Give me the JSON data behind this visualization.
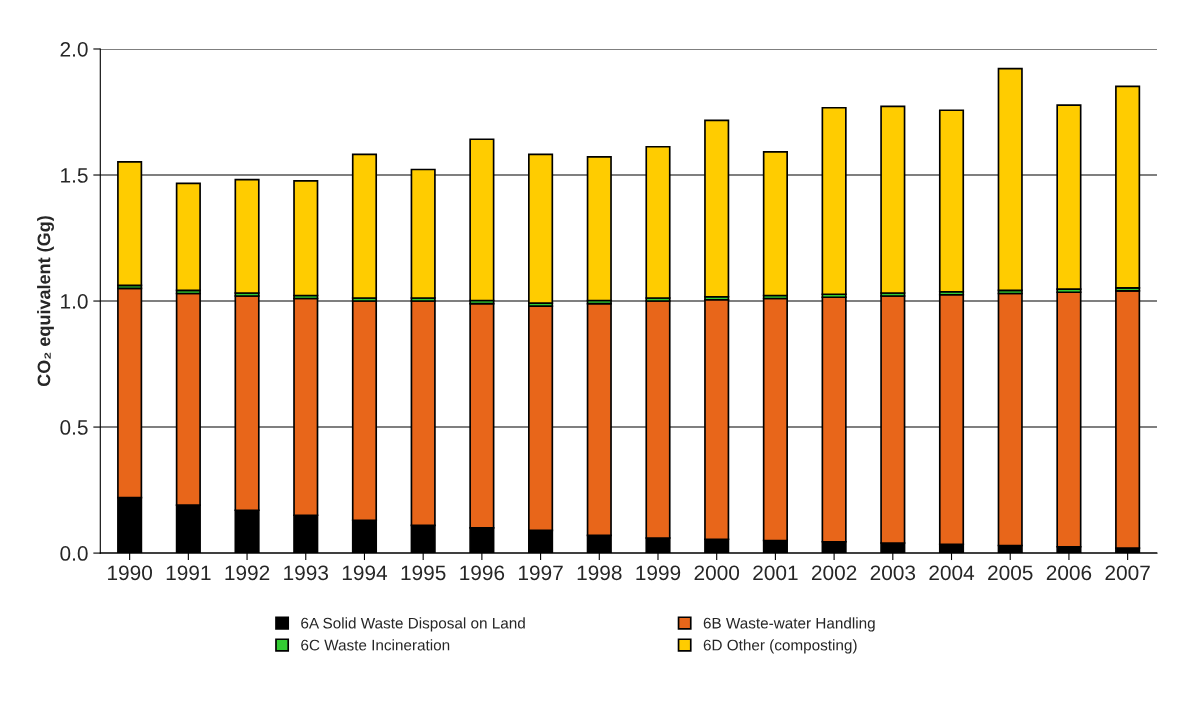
{
  "chart_data": {
    "type": "bar",
    "stacked": true,
    "ylabel": "CO₂ equivalent (Gg)",
    "categories": [
      "1990",
      "1991",
      "1992",
      "1993",
      "1994",
      "1995",
      "1996",
      "1997",
      "1998",
      "1999",
      "2000",
      "2001",
      "2002",
      "2003",
      "2004",
      "2005",
      "2006",
      "2007"
    ],
    "series": [
      {
        "name": "6A Solid Waste Disposal on Land",
        "color": "#000000",
        "values": [
          0.22,
          0.19,
          0.17,
          0.15,
          0.13,
          0.11,
          0.1,
          0.09,
          0.07,
          0.06,
          0.055,
          0.05,
          0.045,
          0.04,
          0.035,
          0.03,
          0.025,
          0.02
        ]
      },
      {
        "name": "6B Waste-water Handling",
        "color": "#e8661a",
        "values": [
          0.83,
          0.84,
          0.85,
          0.86,
          0.87,
          0.89,
          0.89,
          0.89,
          0.92,
          0.94,
          0.95,
          0.96,
          0.97,
          0.98,
          0.99,
          1.0,
          1.01,
          1.02
        ]
      },
      {
        "name": "6C Waste Incineration",
        "color": "#33cc33",
        "values": [
          0.012,
          0.012,
          0.012,
          0.012,
          0.012,
          0.012,
          0.012,
          0.012,
          0.012,
          0.012,
          0.012,
          0.012,
          0.012,
          0.012,
          0.012,
          0.012,
          0.012,
          0.012
        ]
      },
      {
        "name": "6D Other (composting)",
        "color": "#ffcc00",
        "values": [
          0.49,
          0.425,
          0.45,
          0.455,
          0.57,
          0.51,
          0.64,
          0.59,
          0.57,
          0.6,
          0.7,
          0.57,
          0.74,
          0.74,
          0.72,
          0.88,
          0.73,
          0.8
        ]
      }
    ],
    "ylim": [
      0,
      2.0
    ],
    "yticks": [
      {
        "value": 0,
        "label": "0.0"
      },
      {
        "value": 0.5,
        "label": "0.5"
      },
      {
        "value": 1.0,
        "label": "1.0"
      },
      {
        "value": 1.5,
        "label": "1.5"
      },
      {
        "value": 2.0,
        "label": "2.0"
      }
    ],
    "grid": "y",
    "legend": "bottom"
  }
}
